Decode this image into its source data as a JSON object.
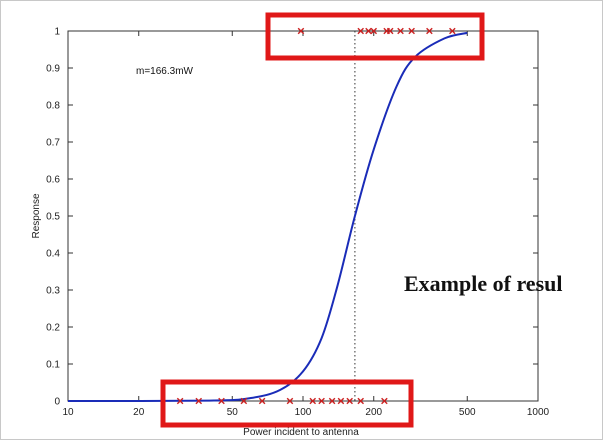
{
  "chart_data": {
    "type": "scatter",
    "title": "",
    "xlabel": "Power incident to antenna",
    "ylabel": "Response",
    "x_scale": "log",
    "xlim": [
      10,
      1000
    ],
    "ylim": [
      0,
      1
    ],
    "x_ticks": [
      10,
      20,
      50,
      100,
      200,
      500,
      1000
    ],
    "y_ticks": [
      0,
      0.1,
      0.2,
      0.3,
      0.4,
      0.5,
      0.6,
      0.7,
      0.8,
      0.9,
      1
    ],
    "grid": false,
    "fit_curve": {
      "name": "",
      "color": "#1a2cb8",
      "midpoint": 166.3,
      "points": [
        {
          "x": 10,
          "y": 0
        },
        {
          "x": 40,
          "y": 0.001
        },
        {
          "x": 60,
          "y": 0.008
        },
        {
          "x": 80,
          "y": 0.03
        },
        {
          "x": 100,
          "y": 0.08
        },
        {
          "x": 120,
          "y": 0.17
        },
        {
          "x": 140,
          "y": 0.31
        },
        {
          "x": 166.3,
          "y": 0.5
        },
        {
          "x": 200,
          "y": 0.68
        },
        {
          "x": 250,
          "y": 0.85
        },
        {
          "x": 300,
          "y": 0.93
        },
        {
          "x": 400,
          "y": 0.98
        },
        {
          "x": 500,
          "y": 0.995
        }
      ]
    },
    "markers": {
      "color": "#cc2222",
      "points": [
        {
          "x": 30,
          "y": 0
        },
        {
          "x": 36,
          "y": 0
        },
        {
          "x": 45,
          "y": 0
        },
        {
          "x": 56,
          "y": 0
        },
        {
          "x": 67,
          "y": 0
        },
        {
          "x": 88,
          "y": 0
        },
        {
          "x": 110,
          "y": 0
        },
        {
          "x": 120,
          "y": 0
        },
        {
          "x": 133,
          "y": 0
        },
        {
          "x": 145,
          "y": 0
        },
        {
          "x": 158,
          "y": 0
        },
        {
          "x": 176,
          "y": 0
        },
        {
          "x": 222,
          "y": 0
        },
        {
          "x": 98,
          "y": 1
        },
        {
          "x": 176,
          "y": 1
        },
        {
          "x": 190,
          "y": 1
        },
        {
          "x": 200,
          "y": 1
        },
        {
          "x": 227,
          "y": 1
        },
        {
          "x": 235,
          "y": 1
        },
        {
          "x": 260,
          "y": 1
        },
        {
          "x": 290,
          "y": 1
        },
        {
          "x": 345,
          "y": 1
        },
        {
          "x": 432,
          "y": 1
        }
      ]
    },
    "reference_line": {
      "x": 166.3,
      "style": "dotted"
    },
    "annotation": "m=166.3mW",
    "highlight_color": "#e01818",
    "overlay_text": "Example of resul"
  }
}
